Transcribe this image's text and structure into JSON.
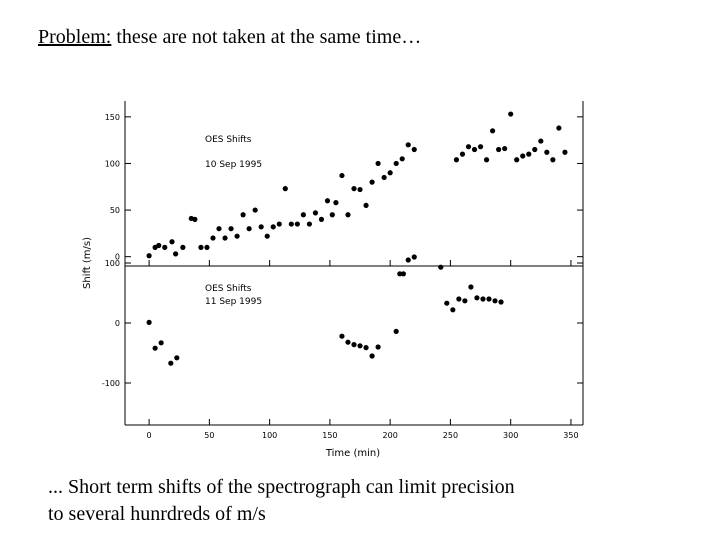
{
  "slide": {
    "title_underlined": "Problem:",
    "title_rest": " these are not taken at the same time…",
    "caption_line1": "... Short term shifts of the spectrograph can limit precision",
    "caption_line2": "to several hunrdreds of m/s"
  },
  "chart_data": [
    {
      "type": "scatter",
      "panel": "top",
      "annotations": [
        "OES Shifts",
        "10 Sep 1995"
      ],
      "ylabel": "Shift (m/s)",
      "xlabel": "Time (min)",
      "xlim": [
        -20,
        360
      ],
      "ylim": [
        -10,
        167
      ],
      "y_ticks": [
        0,
        50,
        100,
        150
      ],
      "y_tick_labels": [
        "0",
        "50",
        "100",
        "150"
      ],
      "x": [
        0,
        5,
        8,
        13,
        19,
        22,
        28,
        35,
        38,
        43,
        48,
        53,
        58,
        63,
        68,
        73,
        78,
        83,
        88,
        93,
        98,
        103,
        108,
        113,
        118,
        123,
        128,
        133,
        138,
        143,
        148,
        152,
        155,
        160,
        165,
        170,
        175,
        180,
        185,
        190,
        195,
        200,
        205,
        210,
        215,
        220,
        255,
        260,
        265,
        270,
        275,
        280,
        285,
        290,
        295,
        300,
        305,
        310,
        315,
        320,
        325,
        330,
        335,
        340,
        345
      ],
      "y": [
        1,
        10,
        12,
        10,
        16,
        3,
        10,
        41,
        40,
        10,
        10,
        20,
        30,
        20,
        30,
        22,
        45,
        30,
        50,
        32,
        22,
        32,
        35,
        73,
        35,
        35,
        45,
        35,
        47,
        40,
        60,
        45,
        58,
        87,
        45,
        73,
        72,
        55,
        80,
        100,
        85,
        90,
        100,
        105,
        120,
        115,
        104,
        110,
        118,
        115,
        118,
        104,
        135,
        115,
        116,
        153,
        104,
        108,
        110,
        115,
        124,
        112,
        104,
        138,
        112
      ]
    },
    {
      "type": "scatter",
      "panel": "bottom",
      "annotations": [
        "OES Shifts",
        "11 Sep 1995"
      ],
      "ylabel": "Shift (m/s)",
      "xlabel": "Time (min)",
      "xlim": [
        -20,
        360
      ],
      "ylim": [
        -170,
        95
      ],
      "y_ticks": [
        -100,
        0,
        100
      ],
      "y_tick_labels": [
        "-100",
        "0",
        "100"
      ],
      "x_ticks": [
        0,
        50,
        100,
        150,
        200,
        250,
        300,
        350
      ],
      "x_tick_labels": [
        "0",
        "50",
        "100",
        "150",
        "200",
        "250",
        "300",
        "350"
      ],
      "x": [
        0,
        5,
        10,
        18,
        23,
        160,
        165,
        170,
        175,
        180,
        185,
        190,
        205,
        208,
        211,
        215,
        220,
        242,
        247,
        252,
        257,
        262,
        267,
        272,
        277,
        282,
        287,
        292
      ],
      "y": [
        1,
        -42,
        -33,
        -67,
        -58,
        -22,
        -32,
        -36,
        -38,
        -41,
        -55,
        -40,
        -14,
        82,
        82,
        105,
        110,
        93,
        33,
        22,
        40,
        37,
        60,
        42,
        40,
        40,
        37,
        35
      ]
    }
  ]
}
